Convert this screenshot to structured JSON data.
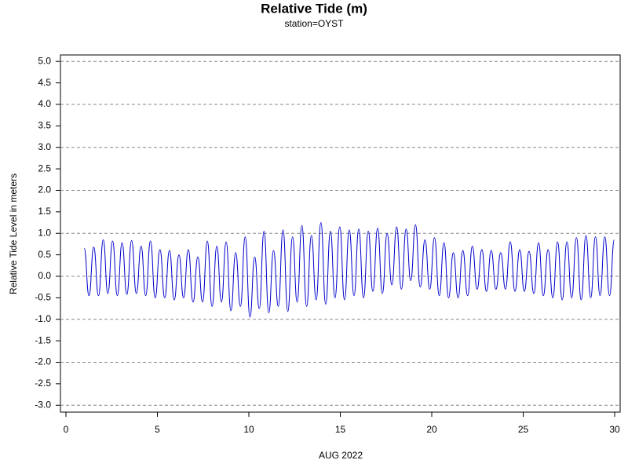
{
  "chart_data": {
    "type": "line",
    "title": "Relative Tide (m)",
    "subtitle": "station=OYST",
    "x_label": "AUG 2022",
    "y_label": "Relative Tide Level in meters",
    "xlim": [
      -0.3,
      30.3
    ],
    "xticks": [
      0,
      5,
      10,
      15,
      20,
      25,
      30
    ],
    "ylim": [
      -3.16,
      5.15
    ],
    "yticks": [
      {
        "value": -3,
        "label": "-3.0"
      },
      {
        "value": -2.5,
        "label": "-2.5"
      },
      {
        "value": -2,
        "label": "-2.0"
      },
      {
        "value": -1.5,
        "label": "-1.5"
      },
      {
        "value": -1,
        "label": "-1.0"
      },
      {
        "value": -0.5,
        "label": "-0.5"
      },
      {
        "value": 0,
        "label": "0.0"
      },
      {
        "value": 0.5,
        "label": "0.5"
      },
      {
        "value": 1,
        "label": "1.0"
      },
      {
        "value": 1.5,
        "label": "1.5"
      },
      {
        "value": 2,
        "label": "2.0"
      },
      {
        "value": 2.5,
        "label": "2.5"
      },
      {
        "value": 3,
        "label": "3.0"
      },
      {
        "value": 3.5,
        "label": "3.5"
      },
      {
        "value": 4,
        "label": "4.0"
      },
      {
        "value": 4.5,
        "label": "4.5"
      },
      {
        "value": 5,
        "label": "5.0"
      }
    ],
    "grid": true,
    "x": [
      1.0,
      1.26,
      1.52,
      1.78,
      2.04,
      2.29,
      2.55,
      2.81,
      3.07,
      3.33,
      3.59,
      3.85,
      4.11,
      4.36,
      4.62,
      4.88,
      5.14,
      5.4,
      5.66,
      5.92,
      6.18,
      6.43,
      6.69,
      6.95,
      7.21,
      7.47,
      7.73,
      7.99,
      8.25,
      8.5,
      8.76,
      9.02,
      9.28,
      9.54,
      9.8,
      10.06,
      10.32,
      10.57,
      10.83,
      11.09,
      11.35,
      11.61,
      11.87,
      12.13,
      12.39,
      12.64,
      12.9,
      13.16,
      13.42,
      13.68,
      13.94,
      14.2,
      14.46,
      14.71,
      14.97,
      15.23,
      15.49,
      15.75,
      16.01,
      16.27,
      16.53,
      16.78,
      17.04,
      17.3,
      17.56,
      17.82,
      18.08,
      18.34,
      18.6,
      18.85,
      19.11,
      19.37,
      19.63,
      19.89,
      20.15,
      20.41,
      20.67,
      20.92,
      21.18,
      21.44,
      21.7,
      21.96,
      22.22,
      22.48,
      22.74,
      22.99,
      23.25,
      23.51,
      23.77,
      24.03,
      24.29,
      24.55,
      24.81,
      25.06,
      25.32,
      25.58,
      25.84,
      26.1,
      26.36,
      26.62,
      26.88,
      27.13,
      27.39,
      27.65,
      27.91,
      28.17,
      28.43,
      28.69,
      28.95,
      29.2,
      29.46,
      29.72,
      29.98
    ],
    "series": [
      {
        "color": "#0000cc",
        "values": [
          0.65,
          -0.45,
          0.68,
          -0.45,
          0.85,
          -0.4,
          0.82,
          -0.45,
          0.78,
          -0.42,
          0.83,
          -0.4,
          0.7,
          -0.45,
          0.82,
          -0.5,
          0.62,
          -0.5,
          0.6,
          -0.55,
          0.5,
          -0.5,
          0.62,
          -0.6,
          0.45,
          -0.6,
          0.82,
          -0.7,
          0.7,
          -0.6,
          0.8,
          -0.8,
          0.55,
          -0.7,
          0.92,
          -0.95,
          0.45,
          -0.75,
          1.05,
          -0.85,
          0.6,
          -0.7,
          1.08,
          -0.82,
          0.92,
          -0.6,
          1.18,
          -0.7,
          0.95,
          -0.55,
          1.25,
          -0.65,
          1.05,
          -0.5,
          1.15,
          -0.55,
          1.08,
          -0.45,
          1.1,
          -0.5,
          1.05,
          -0.35,
          1.12,
          -0.4,
          1.0,
          -0.2,
          1.15,
          -0.3,
          1.1,
          -0.1,
          1.2,
          -0.25,
          0.85,
          -0.3,
          0.9,
          -0.45,
          0.78,
          -0.5,
          0.55,
          -0.5,
          0.6,
          -0.45,
          0.7,
          -0.3,
          0.62,
          -0.35,
          0.6,
          -0.3,
          0.55,
          -0.3,
          0.8,
          -0.35,
          0.62,
          -0.35,
          0.58,
          -0.4,
          0.78,
          -0.45,
          0.62,
          -0.5,
          0.8,
          -0.55,
          0.8,
          -0.5,
          0.9,
          -0.55,
          0.95,
          -0.5,
          0.92,
          -0.45,
          0.92,
          -0.45,
          0.85
        ]
      }
    ]
  }
}
